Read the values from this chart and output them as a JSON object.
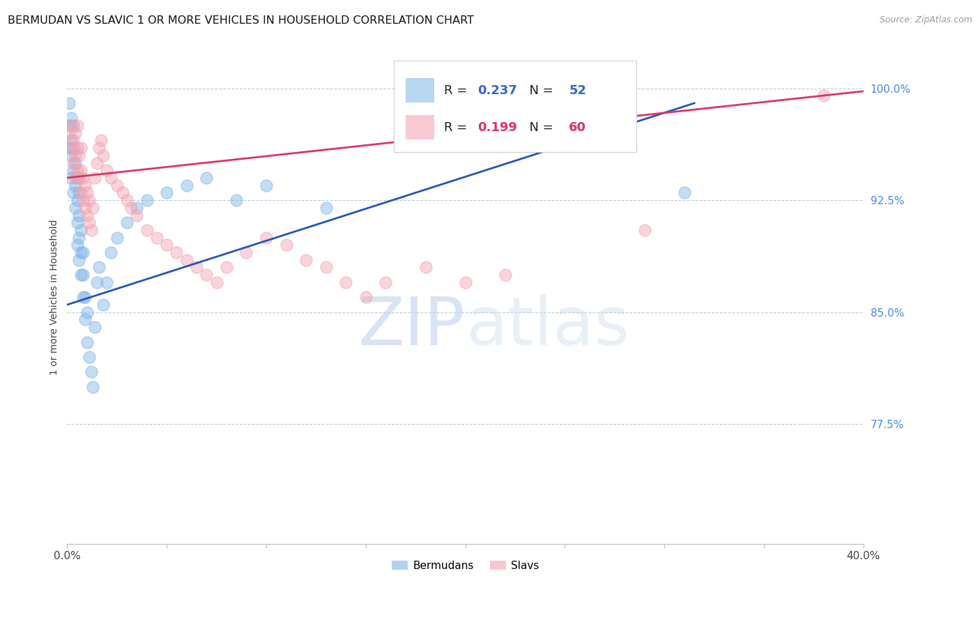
{
  "title": "BERMUDAN VS SLAVIC 1 OR MORE VEHICLES IN HOUSEHOLD CORRELATION CHART",
  "source": "Source: ZipAtlas.com",
  "ylabel": "1 or more Vehicles in Household",
  "ytick_labels": [
    "100.0%",
    "92.5%",
    "85.0%",
    "77.5%"
  ],
  "ytick_vals": [
    1.0,
    0.925,
    0.85,
    0.775
  ],
  "watermark_zip": "ZIP",
  "watermark_atlas": "atlas",
  "legend_blue_label": "Bermudans",
  "legend_pink_label": "Slavs",
  "legend_r_blue": "0.237",
  "legend_n_blue": "52",
  "legend_r_pink": "0.199",
  "legend_n_pink": "60",
  "blue_color": "#7EB3E8",
  "pink_color": "#F4A0B0",
  "trend_blue_color": "#2255BB",
  "trend_pink_color": "#DD3366",
  "xmin": 0.0,
  "xmax": 0.4,
  "ymin": 0.695,
  "ymax": 1.025,
  "blue_x": [
    0.001,
    0.001,
    0.001,
    0.002,
    0.002,
    0.002,
    0.002,
    0.003,
    0.003,
    0.003,
    0.003,
    0.004,
    0.004,
    0.004,
    0.005,
    0.005,
    0.005,
    0.005,
    0.006,
    0.006,
    0.006,
    0.006,
    0.007,
    0.007,
    0.007,
    0.008,
    0.008,
    0.008,
    0.009,
    0.009,
    0.01,
    0.01,
    0.011,
    0.012,
    0.013,
    0.014,
    0.015,
    0.016,
    0.018,
    0.02,
    0.022,
    0.025,
    0.03,
    0.035,
    0.04,
    0.05,
    0.06,
    0.07,
    0.085,
    0.1,
    0.13,
    0.31
  ],
  "blue_y": [
    0.96,
    0.975,
    0.99,
    0.94,
    0.955,
    0.965,
    0.98,
    0.93,
    0.945,
    0.96,
    0.975,
    0.92,
    0.935,
    0.95,
    0.895,
    0.91,
    0.925,
    0.94,
    0.885,
    0.9,
    0.915,
    0.93,
    0.875,
    0.89,
    0.905,
    0.86,
    0.875,
    0.89,
    0.845,
    0.86,
    0.83,
    0.85,
    0.82,
    0.81,
    0.8,
    0.84,
    0.87,
    0.88,
    0.855,
    0.87,
    0.89,
    0.9,
    0.91,
    0.92,
    0.925,
    0.93,
    0.935,
    0.94,
    0.925,
    0.935,
    0.92,
    0.93
  ],
  "pink_x": [
    0.001,
    0.002,
    0.002,
    0.003,
    0.003,
    0.004,
    0.004,
    0.004,
    0.005,
    0.005,
    0.005,
    0.006,
    0.006,
    0.007,
    0.007,
    0.007,
    0.008,
    0.008,
    0.009,
    0.009,
    0.01,
    0.01,
    0.011,
    0.011,
    0.012,
    0.013,
    0.014,
    0.015,
    0.016,
    0.017,
    0.018,
    0.02,
    0.022,
    0.025,
    0.028,
    0.03,
    0.032,
    0.035,
    0.04,
    0.045,
    0.05,
    0.055,
    0.06,
    0.065,
    0.07,
    0.075,
    0.08,
    0.09,
    0.1,
    0.11,
    0.12,
    0.13,
    0.14,
    0.15,
    0.16,
    0.18,
    0.2,
    0.22,
    0.29,
    0.38
  ],
  "pink_y": [
    0.97,
    0.96,
    0.975,
    0.95,
    0.965,
    0.94,
    0.955,
    0.97,
    0.945,
    0.96,
    0.975,
    0.94,
    0.955,
    0.93,
    0.945,
    0.96,
    0.925,
    0.94,
    0.92,
    0.935,
    0.915,
    0.93,
    0.91,
    0.925,
    0.905,
    0.92,
    0.94,
    0.95,
    0.96,
    0.965,
    0.955,
    0.945,
    0.94,
    0.935,
    0.93,
    0.925,
    0.92,
    0.915,
    0.905,
    0.9,
    0.895,
    0.89,
    0.885,
    0.88,
    0.875,
    0.87,
    0.88,
    0.89,
    0.9,
    0.895,
    0.885,
    0.88,
    0.87,
    0.86,
    0.87,
    0.88,
    0.87,
    0.875,
    0.905,
    0.995
  ],
  "trend_blue_x0": 0.0,
  "trend_blue_y0": 0.855,
  "trend_blue_x1": 0.315,
  "trend_blue_y1": 0.99,
  "trend_pink_x0": 0.0,
  "trend_pink_y0": 0.94,
  "trend_pink_x1": 0.4,
  "trend_pink_y1": 0.998
}
